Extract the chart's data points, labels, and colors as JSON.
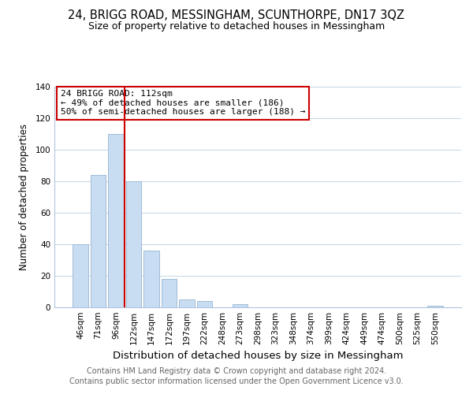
{
  "title": "24, BRIGG ROAD, MESSINGHAM, SCUNTHORPE, DN17 3QZ",
  "subtitle": "Size of property relative to detached houses in Messingham",
  "xlabel": "Distribution of detached houses by size in Messingham",
  "ylabel": "Number of detached properties",
  "bar_labels": [
    "46sqm",
    "71sqm",
    "96sqm",
    "122sqm",
    "147sqm",
    "172sqm",
    "197sqm",
    "222sqm",
    "248sqm",
    "273sqm",
    "298sqm",
    "323sqm",
    "348sqm",
    "374sqm",
    "399sqm",
    "424sqm",
    "449sqm",
    "474sqm",
    "500sqm",
    "525sqm",
    "550sqm"
  ],
  "bar_values": [
    40,
    84,
    110,
    80,
    36,
    18,
    5,
    4,
    0,
    2,
    0,
    0,
    0,
    0,
    0,
    0,
    0,
    0,
    0,
    0,
    1
  ],
  "bar_color": "#c8ddf2",
  "bar_edge_color": "#a0bcd8",
  "vline_x_index": 2.5,
  "vline_color": "#cc0000",
  "ylim": [
    0,
    140
  ],
  "yticks": [
    0,
    20,
    40,
    60,
    80,
    100,
    120,
    140
  ],
  "annotation_title": "24 BRIGG ROAD: 112sqm",
  "annotation_line1": "← 49% of detached houses are smaller (186)",
  "annotation_line2": "50% of semi-detached houses are larger (188) →",
  "annotation_box_edge": "#cc0000",
  "footer_line1": "Contains HM Land Registry data © Crown copyright and database right 2024.",
  "footer_line2": "Contains public sector information licensed under the Open Government Licence v3.0.",
  "title_fontsize": 10.5,
  "subtitle_fontsize": 9,
  "xlabel_fontsize": 9.5,
  "ylabel_fontsize": 8.5,
  "tick_fontsize": 7.5,
  "annotation_fontsize": 8,
  "footer_fontsize": 7
}
